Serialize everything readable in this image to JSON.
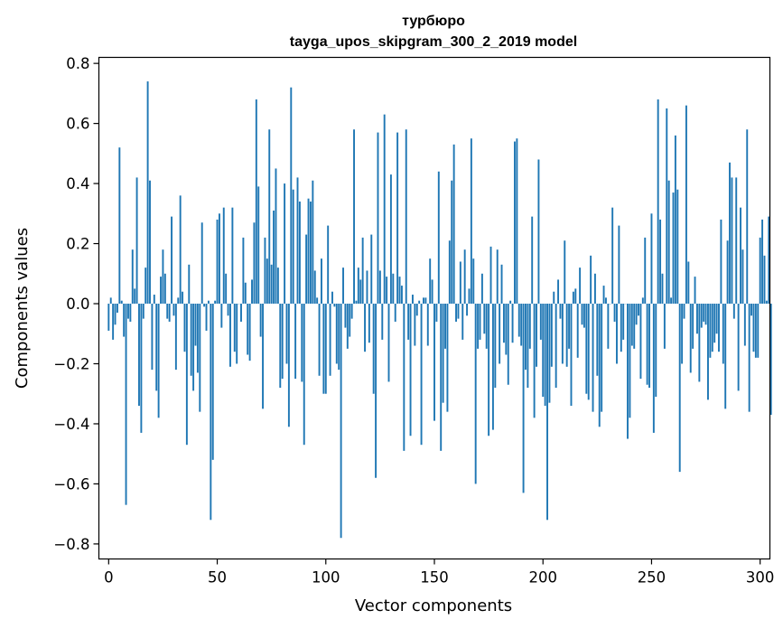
{
  "chart_data": {
    "type": "bar",
    "title": "турбюро",
    "subtitle": "tayga_upos_skipgram_300_2_2019 model",
    "xlabel": "Vector components",
    "ylabel": "Components values",
    "xlim": [
      -4.5,
      304.5
    ],
    "ylim": [
      -0.85,
      0.82
    ],
    "xticks": [
      0,
      50,
      100,
      150,
      200,
      250,
      300
    ],
    "yticks": [
      -0.8,
      -0.6,
      -0.4,
      -0.2,
      0.0,
      0.2,
      0.4,
      0.6,
      0.8
    ],
    "xtick_labels": [
      "0",
      "50",
      "100",
      "150",
      "200",
      "250",
      "300"
    ],
    "ytick_labels": [
      "−0.8",
      "−0.6",
      "−0.4",
      "−0.2",
      "0.0",
      "0.2",
      "0.4",
      "0.6",
      "0.8"
    ],
    "bar_color": "#1f77b4",
    "grid": false,
    "legend": "none",
    "series": [
      {
        "values": [
          -0.09,
          0.02,
          -0.12,
          -0.07,
          -0.03,
          0.52,
          0.01,
          -0.11,
          -0.67,
          -0.05,
          -0.06,
          0.18,
          0.05,
          0.42,
          -0.34,
          -0.43,
          -0.05,
          0.12,
          0.74,
          0.41,
          -0.22,
          0.03,
          -0.29,
          -0.38,
          0.09,
          0.18,
          0.1,
          -0.05,
          -0.06,
          0.29,
          -0.04,
          -0.22,
          0.02,
          0.36,
          0.04,
          -0.16,
          -0.47,
          0.13,
          -0.24,
          -0.29,
          -0.14,
          -0.23,
          -0.36,
          0.27,
          -0.01,
          -0.09,
          0.01,
          -0.72,
          -0.52,
          0.01,
          0.28,
          0.3,
          -0.08,
          0.32,
          0.1,
          -0.04,
          -0.21,
          0.32,
          -0.16,
          -0.2,
          0.0,
          -0.06,
          0.22,
          0.07,
          -0.17,
          -0.19,
          0.08,
          0.27,
          0.68,
          0.39,
          -0.11,
          -0.35,
          0.22,
          0.15,
          0.58,
          0.13,
          0.31,
          0.45,
          0.12,
          -0.28,
          -0.25,
          0.4,
          -0.2,
          -0.41,
          0.72,
          0.38,
          -0.25,
          0.42,
          0.34,
          -0.26,
          -0.47,
          0.23,
          0.35,
          0.34,
          0.41,
          0.11,
          0.02,
          -0.24,
          0.15,
          -0.3,
          -0.3,
          0.26,
          -0.24,
          0.04,
          -0.01,
          -0.2,
          -0.22,
          -0.78,
          0.12,
          -0.08,
          -0.15,
          -0.11,
          -0.05,
          0.58,
          0.01,
          0.12,
          0.08,
          0.22,
          -0.16,
          0.11,
          -0.13,
          0.23,
          -0.3,
          -0.58,
          0.57,
          0.11,
          -0.12,
          0.63,
          0.09,
          -0.26,
          0.43,
          0.1,
          -0.06,
          0.57,
          0.09,
          0.06,
          -0.49,
          0.58,
          -0.12,
          -0.44,
          0.03,
          -0.14,
          -0.04,
          0.01,
          -0.47,
          0.02,
          0.02,
          -0.14,
          0.15,
          0.08,
          -0.39,
          -0.06,
          0.44,
          -0.49,
          -0.33,
          -0.15,
          -0.36,
          0.21,
          0.41,
          0.53,
          -0.06,
          -0.05,
          0.14,
          -0.12,
          0.18,
          -0.04,
          0.05,
          0.55,
          0.15,
          -0.6,
          -0.15,
          -0.12,
          0.1,
          -0.1,
          -0.15,
          -0.44,
          0.19,
          -0.42,
          -0.28,
          0.18,
          -0.2,
          0.13,
          -0.13,
          -0.17,
          -0.27,
          0.01,
          -0.13,
          0.54,
          0.55,
          -0.11,
          -0.14,
          -0.63,
          -0.22,
          -0.28,
          -0.15,
          0.29,
          -0.38,
          -0.21,
          0.48,
          -0.12,
          -0.31,
          -0.34,
          -0.72,
          -0.33,
          -0.21,
          0.04,
          -0.28,
          0.08,
          -0.05,
          -0.2,
          0.21,
          -0.21,
          -0.15,
          -0.34,
          0.04,
          0.05,
          -0.18,
          0.12,
          -0.07,
          -0.08,
          -0.3,
          -0.32,
          0.16,
          -0.36,
          0.1,
          -0.24,
          -0.41,
          -0.36,
          0.06,
          0.02,
          -0.15,
          0.0,
          0.32,
          -0.06,
          -0.2,
          0.26,
          -0.16,
          -0.12,
          0.0,
          -0.45,
          -0.38,
          -0.14,
          -0.15,
          -0.07,
          -0.04,
          -0.25,
          0.02,
          0.22,
          -0.27,
          -0.28,
          0.3,
          -0.43,
          -0.31,
          0.68,
          0.28,
          0.1,
          -0.15,
          0.65,
          0.41,
          0.02,
          0.37,
          0.56,
          0.38,
          -0.56,
          -0.2,
          -0.05,
          0.66,
          0.14,
          -0.23,
          -0.15,
          0.09,
          -0.1,
          -0.26,
          -0.08,
          -0.06,
          -0.07,
          -0.32,
          -0.18,
          -0.16,
          -0.13,
          -0.1,
          -0.16,
          0.28,
          -0.2,
          -0.35,
          0.21,
          0.47,
          0.42,
          -0.05,
          0.42,
          -0.29,
          0.32,
          0.18,
          -0.14,
          0.58,
          -0.36,
          -0.04,
          -0.16,
          -0.18,
          -0.18,
          0.22,
          0.28,
          0.16,
          0.01,
          0.29,
          -0.37
        ]
      }
    ]
  }
}
